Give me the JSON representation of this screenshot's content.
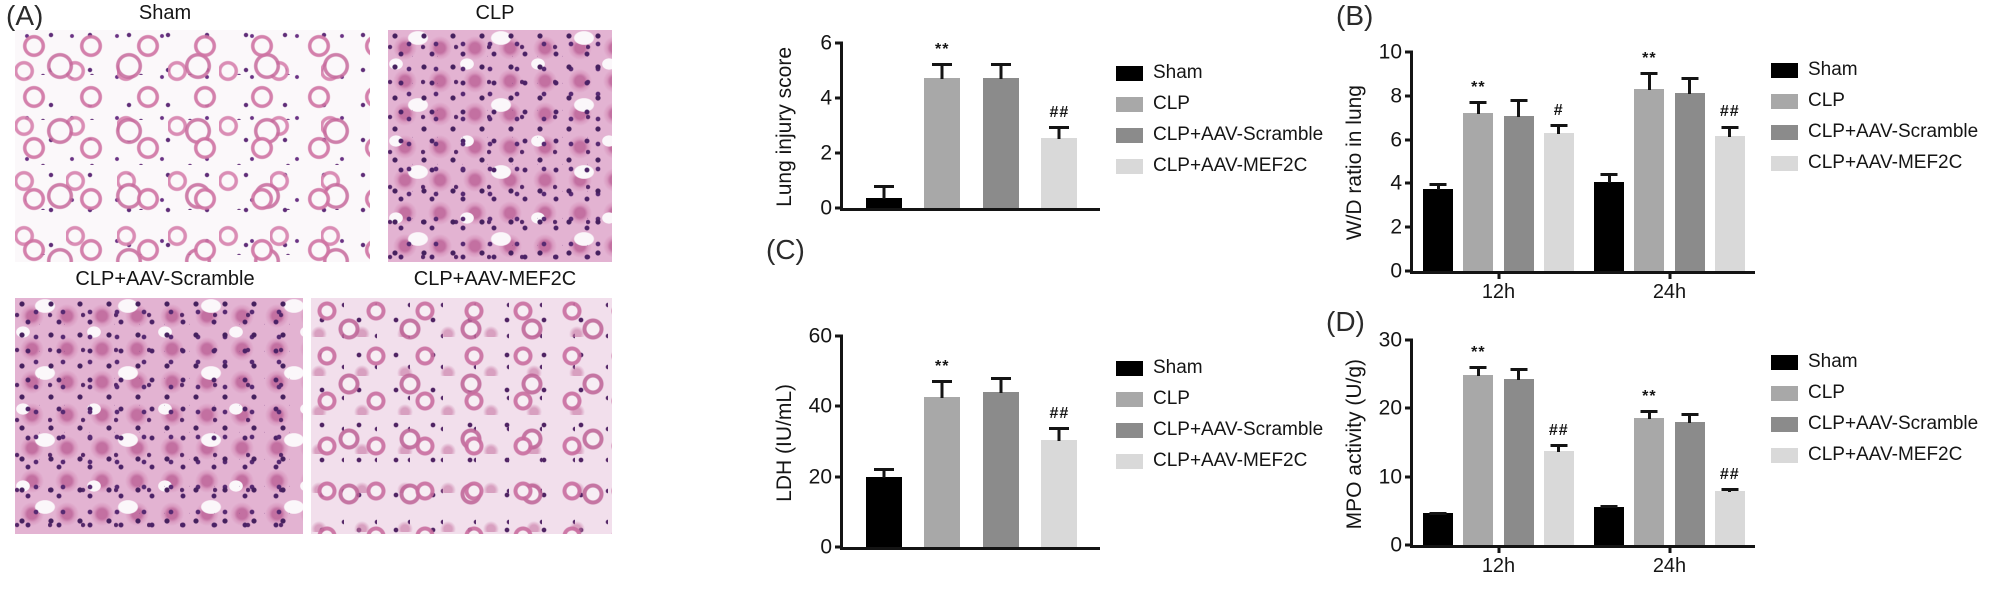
{
  "figure": {
    "panels": {
      "A": {
        "label": "(A)"
      },
      "B": {
        "label": "(B)"
      },
      "C": {
        "label": "(C)"
      },
      "D": {
        "label": "(D)"
      }
    }
  },
  "histology": {
    "images": [
      {
        "label": "Sham",
        "texture": "sparse"
      },
      {
        "label": "CLP",
        "texture": "dense"
      },
      {
        "label": "CLP+AAV-Scramble",
        "texture": "dense"
      },
      {
        "label": "CLP+AAV-MEF2C",
        "texture": "medium"
      }
    ]
  },
  "series_colors": {
    "Sham": "#000000",
    "CLP": "#a8a8a8",
    "CLP+AAV-Scramble": "#8b8b8b",
    "CLP+AAV-MEF2C": "#d9d9d9"
  },
  "chart_data": [
    {
      "id": "chart-a",
      "panel": "A",
      "type": "bar",
      "title": "",
      "xlabel": "",
      "ylabel": "Lung injury score",
      "ylim": [
        0,
        6
      ],
      "yticks": [
        0,
        2,
        4,
        6
      ],
      "grid": false,
      "legend_position": "right",
      "categories": [
        "Sham",
        "CLP",
        "CLP+AAV-Scramble",
        "CLP+AAV-MEF2C"
      ],
      "values": [
        0.35,
        4.65,
        4.65,
        2.5
      ],
      "errors": [
        0.5,
        0.55,
        0.55,
        0.45
      ],
      "sig": [
        "",
        "**",
        "",
        "##"
      ],
      "legend": [
        "Sham",
        "CLP",
        "CLP+AAV-Scramble",
        "CLP+AAV-MEF2C"
      ]
    },
    {
      "id": "chart-b",
      "panel": "B",
      "type": "bar",
      "title": "",
      "xlabel": "",
      "ylabel": "W/D ratio in lung",
      "ylim": [
        0,
        10
      ],
      "yticks": [
        0,
        2,
        4,
        6,
        8,
        10
      ],
      "grid": false,
      "legend_position": "right",
      "categories": [
        "12h",
        "24h"
      ],
      "series": [
        {
          "name": "Sham",
          "values": [
            3.7,
            4.0
          ],
          "errors": [
            0.3,
            0.45
          ],
          "sig": [
            "",
            ""
          ]
        },
        {
          "name": "CLP",
          "values": [
            7.1,
            8.2
          ],
          "errors": [
            0.6,
            0.8
          ],
          "sig": [
            "**",
            "**"
          ]
        },
        {
          "name": "CLP+AAV-Scramble",
          "values": [
            7.0,
            8.0
          ],
          "errors": [
            0.8,
            0.8
          ],
          "sig": [
            "",
            ""
          ]
        },
        {
          "name": "CLP+AAV-MEF2C",
          "values": [
            6.2,
            6.1
          ],
          "errors": [
            0.45,
            0.5
          ],
          "sig": [
            "#",
            "##"
          ]
        }
      ],
      "legend": [
        "Sham",
        "CLP",
        "CLP+AAV-Scramble",
        "CLP+AAV-MEF2C"
      ]
    },
    {
      "id": "chart-c",
      "panel": "C",
      "type": "bar",
      "title": "",
      "xlabel": "",
      "ylabel": "LDH (IU/mL)",
      "ylim": [
        0,
        60
      ],
      "yticks": [
        0,
        20,
        40,
        60
      ],
      "grid": false,
      "legend_position": "right",
      "categories": [
        "Sham",
        "CLP",
        "CLP+AAV-Scramble",
        "CLP+AAV-MEF2C"
      ],
      "values": [
        19.5,
        42,
        43.5,
        30
      ],
      "errors": [
        3,
        5,
        4.5,
        4
      ],
      "sig": [
        "",
        "**",
        "",
        "##"
      ],
      "legend": [
        "Sham",
        "CLP",
        "CLP+AAV-Scramble",
        "CLP+AAV-MEF2C"
      ]
    },
    {
      "id": "chart-d",
      "panel": "D",
      "type": "bar",
      "title": "",
      "xlabel": "",
      "ylabel": "MPO activity (U/g)",
      "ylim": [
        0,
        30
      ],
      "yticks": [
        0,
        10,
        20,
        30
      ],
      "grid": false,
      "legend_position": "right",
      "categories": [
        "12h",
        "24h"
      ],
      "series": [
        {
          "name": "Sham",
          "values": [
            4.6,
            5.5
          ],
          "errors": [
            0.3,
            0.35
          ],
          "sig": [
            "",
            ""
          ]
        },
        {
          "name": "CLP",
          "values": [
            24.5,
            18.3
          ],
          "errors": [
            1.4,
            1.3
          ],
          "sig": [
            "**",
            "**"
          ]
        },
        {
          "name": "CLP+AAV-Scramble",
          "values": [
            24.0,
            17.8
          ],
          "errors": [
            1.7,
            1.4
          ],
          "sig": [
            "",
            ""
          ]
        },
        {
          "name": "CLP+AAV-MEF2C",
          "values": [
            13.5,
            7.8
          ],
          "errors": [
            1.2,
            0.6
          ],
          "sig": [
            "##",
            "##"
          ]
        }
      ],
      "legend": [
        "Sham",
        "CLP",
        "CLP+AAV-Scramble",
        "CLP+AAV-MEF2C"
      ]
    }
  ]
}
